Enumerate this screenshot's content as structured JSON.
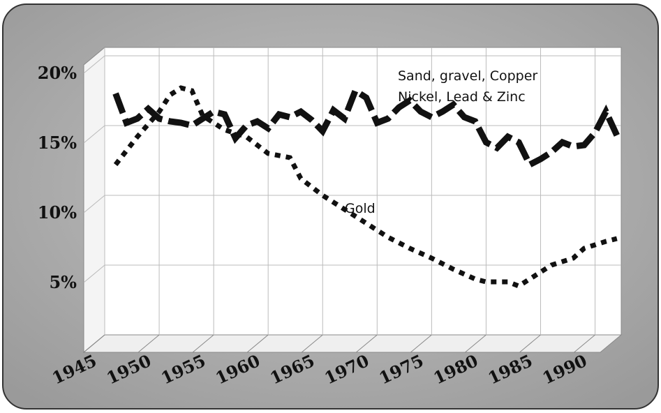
{
  "chart_data": {
    "type": "line",
    "annotations": [
      "Sand, gravel, Copper",
      "Nickel, Lead & Zinc",
      "Gold"
    ],
    "xlim": [
      1945,
      1992.4
    ],
    "xticks": [
      1945,
      1950,
      1955,
      1960,
      1965,
      1970,
      1975,
      1980,
      1985,
      1990
    ],
    "ylim": [
      0,
      20.6
    ],
    "yticks": [
      {
        "value": 5,
        "label": "5%"
      },
      {
        "value": 10,
        "label": "10%"
      },
      {
        "value": 15,
        "label": "15%"
      },
      {
        "value": 20,
        "label": "20%"
      }
    ],
    "grid": true,
    "series": [
      {
        "color": "#111111",
        "style": "dashed",
        "x": [
          1946,
          1947,
          1948,
          1949,
          1950,
          1951,
          1952,
          1953,
          1954,
          1955,
          1956,
          1957,
          1958,
          1959,
          1960,
          1961,
          1962,
          1963,
          1964,
          1965,
          1966,
          1967,
          1968,
          1969,
          1970,
          1971,
          1972,
          1973,
          1974,
          1975,
          1976,
          1977,
          1978,
          1979,
          1980,
          1981,
          1982,
          1983,
          1984,
          1985,
          1986,
          1987,
          1988,
          1989,
          1990,
          1991,
          1992
        ],
        "values": [
          17.3,
          15.2,
          15.5,
          16.2,
          15.5,
          15.3,
          15.2,
          15.0,
          15.5,
          16.0,
          15.8,
          14.1,
          15.0,
          15.3,
          14.8,
          15.8,
          15.6,
          16.0,
          15.4,
          14.6,
          16.1,
          15.5,
          17.5,
          17.0,
          15.2,
          15.5,
          16.3,
          16.8,
          16.0,
          15.6,
          16.0,
          16.5,
          15.6,
          15.3,
          13.8,
          13.4,
          14.2,
          13.8,
          12.2,
          12.6,
          13.1,
          13.8,
          13.5,
          13.6,
          14.5,
          16.0,
          14.3
        ]
      },
      {
        "color": "#111111",
        "style": "dotted",
        "x": [
          1946,
          1948,
          1950,
          1951,
          1952,
          1953,
          1954,
          1956,
          1958,
          1960,
          1962,
          1963,
          1965,
          1967,
          1969,
          1971,
          1973,
          1975,
          1977,
          1979,
          1980,
          1982,
          1983,
          1985,
          1986,
          1988,
          1989,
          1991,
          1992
        ],
        "values": [
          12.2,
          14.2,
          16.0,
          17.2,
          17.7,
          17.5,
          15.7,
          14.7,
          14.2,
          13.0,
          12.7,
          11.2,
          10.0,
          9.0,
          8.0,
          7.0,
          6.2,
          5.5,
          4.7,
          4.0,
          3.8,
          3.8,
          3.5,
          4.5,
          5.0,
          5.5,
          6.2,
          6.7,
          6.9
        ]
      }
    ]
  }
}
